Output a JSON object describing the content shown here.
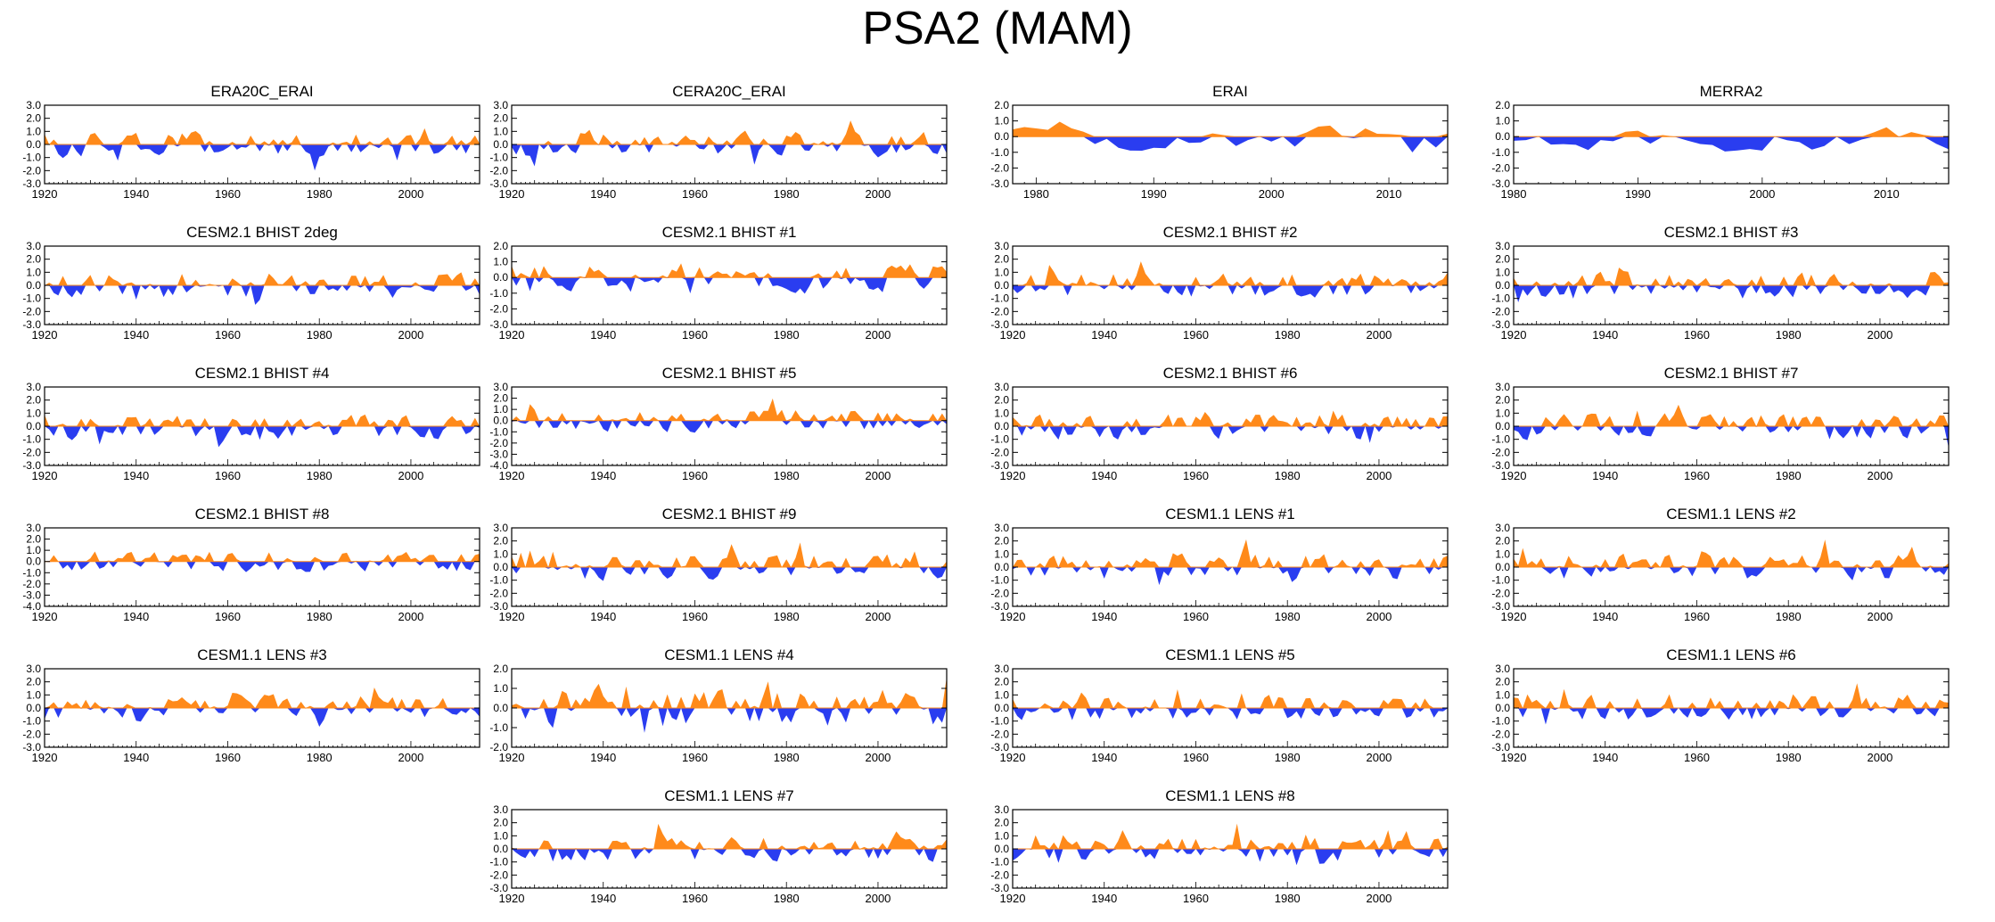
{
  "title": "PSA2 (MAM)",
  "colors": {
    "positive": "#ff8a1a",
    "negative": "#2a3df0",
    "axis": "#000000"
  },
  "chart_data": [
    {
      "name": "ERA20C_ERAI",
      "type": "area",
      "x_start": 1920,
      "x_end": 2015,
      "x_ticks": [
        1920,
        1940,
        1960,
        1980,
        2000
      ],
      "y_ticks": [
        3,
        2,
        1,
        0,
        -1,
        -2,
        -3
      ],
      "y_tick_labels": [
        "3.0",
        "2.0",
        "1.0",
        "0.0",
        "-1.0",
        "-2.0",
        "-3.0"
      ],
      "ylim": [
        -3,
        3
      ],
      "seed": 11
    },
    {
      "name": "CERA20C_ERAI",
      "type": "area",
      "x_start": 1920,
      "x_end": 2015,
      "x_ticks": [
        1920,
        1940,
        1960,
        1980,
        2000
      ],
      "y_ticks": [
        3,
        2,
        1,
        0,
        -1,
        -2,
        -3
      ],
      "y_tick_labels": [
        "3.0",
        "2.0",
        "1.0",
        "0.0",
        "-1.0",
        "-2.0",
        "-3.0"
      ],
      "ylim": [
        -3,
        3
      ],
      "seed": 12
    },
    {
      "name": "ERAI",
      "type": "area",
      "x_start": 1978,
      "x_end": 2015,
      "x_ticks": [
        1980,
        1990,
        2000,
        2010
      ],
      "y_ticks": [
        2,
        1,
        0,
        -1,
        -2,
        -3
      ],
      "y_tick_labels": [
        "2.0",
        "1.0",
        "0.0",
        "-1.0",
        "-2.0",
        "-3.0"
      ],
      "ylim": [
        -3,
        2
      ],
      "seed": 13,
      "smooth": true
    },
    {
      "name": "MERRA2",
      "type": "area",
      "x_start": 1980,
      "x_end": 2015,
      "x_ticks": [
        1980,
        1990,
        2000,
        2010
      ],
      "y_ticks": [
        2,
        1,
        0,
        -1,
        -2,
        -3
      ],
      "y_tick_labels": [
        "2.0",
        "1.0",
        "0.0",
        "-1.0",
        "-2.0",
        "-3.0"
      ],
      "ylim": [
        -3,
        2
      ],
      "seed": 14,
      "smooth": true
    },
    {
      "name": "CESM2.1 BHIST 2deg",
      "type": "area",
      "x_start": 1920,
      "x_end": 2015,
      "x_ticks": [
        1920,
        1940,
        1960,
        1980,
        2000
      ],
      "y_ticks": [
        3,
        2,
        1,
        0,
        -1,
        -2,
        -3
      ],
      "y_tick_labels": [
        "3.0",
        "2.0",
        "1.0",
        "0.0",
        "-1.0",
        "-2.0",
        "-3.0"
      ],
      "ylim": [
        -3,
        3
      ],
      "seed": 21
    },
    {
      "name": "CESM2.1 BHIST #1",
      "type": "area",
      "x_start": 1920,
      "x_end": 2015,
      "x_ticks": [
        1920,
        1940,
        1960,
        1980,
        2000
      ],
      "y_ticks": [
        2,
        1,
        0,
        -1,
        -2,
        -3
      ],
      "y_tick_labels": [
        "2.0",
        "1.0",
        "0.0",
        "-1.0",
        "-2.0",
        "-3.0"
      ],
      "ylim": [
        -3,
        2
      ],
      "seed": 22
    },
    {
      "name": "CESM2.1 BHIST #2",
      "type": "area",
      "x_start": 1920,
      "x_end": 2015,
      "x_ticks": [
        1920,
        1940,
        1960,
        1980,
        2000
      ],
      "y_ticks": [
        3,
        2,
        1,
        0,
        -1,
        -2,
        -3
      ],
      "y_tick_labels": [
        "3.0",
        "2.0",
        "1.0",
        "0.0",
        "-1.0",
        "-2.0",
        "-3.0"
      ],
      "ylim": [
        -3,
        3
      ],
      "seed": 23
    },
    {
      "name": "CESM2.1 BHIST #3",
      "type": "area",
      "x_start": 1920,
      "x_end": 2015,
      "x_ticks": [
        1920,
        1940,
        1960,
        1980,
        2000
      ],
      "y_ticks": [
        3,
        2,
        1,
        0,
        -1,
        -2,
        -3
      ],
      "y_tick_labels": [
        "3.0",
        "2.0",
        "1.0",
        "0.0",
        "-1.0",
        "-2.0",
        "-3.0"
      ],
      "ylim": [
        -3,
        3
      ],
      "seed": 24
    },
    {
      "name": "CESM2.1 BHIST #4",
      "type": "area",
      "x_start": 1920,
      "x_end": 2015,
      "x_ticks": [
        1920,
        1940,
        1960,
        1980,
        2000
      ],
      "y_ticks": [
        3,
        2,
        1,
        0,
        -1,
        -2,
        -3
      ],
      "y_tick_labels": [
        "3.0",
        "2.0",
        "1.0",
        "0.0",
        "-1.0",
        "-2.0",
        "-3.0"
      ],
      "ylim": [
        -3,
        3
      ],
      "seed": 31
    },
    {
      "name": "CESM2.1 BHIST #5",
      "type": "area",
      "x_start": 1920,
      "x_end": 2015,
      "x_ticks": [
        1920,
        1940,
        1960,
        1980,
        2000
      ],
      "y_ticks": [
        3,
        2,
        1,
        0,
        -1,
        -2,
        -3,
        -4
      ],
      "y_tick_labels": [
        "3.0",
        "2.0",
        "1.0",
        "0.0",
        "-1.0",
        "-2.0",
        "-3.0",
        "-4.0"
      ],
      "ylim": [
        -4,
        3
      ],
      "seed": 32
    },
    {
      "name": "CESM2.1 BHIST #6",
      "type": "area",
      "x_start": 1920,
      "x_end": 2015,
      "x_ticks": [
        1920,
        1940,
        1960,
        1980,
        2000
      ],
      "y_ticks": [
        3,
        2,
        1,
        0,
        -1,
        -2,
        -3
      ],
      "y_tick_labels": [
        "3.0",
        "2.0",
        "1.0",
        "0.0",
        "-1.0",
        "-2.0",
        "-3.0"
      ],
      "ylim": [
        -3,
        3
      ],
      "seed": 33
    },
    {
      "name": "CESM2.1 BHIST #7",
      "type": "area",
      "x_start": 1920,
      "x_end": 2015,
      "x_ticks": [
        1920,
        1940,
        1960,
        1980,
        2000
      ],
      "y_ticks": [
        3,
        2,
        1,
        0,
        -1,
        -2,
        -3
      ],
      "y_tick_labels": [
        "3.0",
        "2.0",
        "1.0",
        "0.0",
        "-1.0",
        "-2.0",
        "-3.0"
      ],
      "ylim": [
        -3,
        3
      ],
      "seed": 34
    },
    {
      "name": "CESM2.1 BHIST #8",
      "type": "area",
      "x_start": 1920,
      "x_end": 2015,
      "x_ticks": [
        1920,
        1940,
        1960,
        1980,
        2000
      ],
      "y_ticks": [
        3,
        2,
        1,
        0,
        -1,
        -2,
        -3,
        -4
      ],
      "y_tick_labels": [
        "3.0",
        "2.0",
        "1.0",
        "0.0",
        "-1.0",
        "-2.0",
        "-3.0",
        "-4.0"
      ],
      "ylim": [
        -4,
        3
      ],
      "seed": 41
    },
    {
      "name": "CESM2.1 BHIST #9",
      "type": "area",
      "x_start": 1920,
      "x_end": 2015,
      "x_ticks": [
        1920,
        1940,
        1960,
        1980,
        2000
      ],
      "y_ticks": [
        3,
        2,
        1,
        0,
        -1,
        -2,
        -3
      ],
      "y_tick_labels": [
        "3.0",
        "2.0",
        "1.0",
        "0.0",
        "-1.0",
        "-2.0",
        "-3.0"
      ],
      "ylim": [
        -3,
        3
      ],
      "seed": 42
    },
    {
      "name": "CESM1.1 LENS #1",
      "type": "area",
      "x_start": 1920,
      "x_end": 2015,
      "x_ticks": [
        1920,
        1940,
        1960,
        1980,
        2000
      ],
      "y_ticks": [
        3,
        2,
        1,
        0,
        -1,
        -2,
        -3
      ],
      "y_tick_labels": [
        "3.0",
        "2.0",
        "1.0",
        "0.0",
        "-1.0",
        "-2.0",
        "-3.0"
      ],
      "ylim": [
        -3,
        3
      ],
      "seed": 43
    },
    {
      "name": "CESM1.1 LENS #2",
      "type": "area",
      "x_start": 1920,
      "x_end": 2015,
      "x_ticks": [
        1920,
        1940,
        1960,
        1980,
        2000
      ],
      "y_ticks": [
        3,
        2,
        1,
        0,
        -1,
        -2,
        -3
      ],
      "y_tick_labels": [
        "3.0",
        "2.0",
        "1.0",
        "0.0",
        "-1.0",
        "-2.0",
        "-3.0"
      ],
      "ylim": [
        -3,
        3
      ],
      "seed": 44
    },
    {
      "name": "CESM1.1 LENS #3",
      "type": "area",
      "x_start": 1920,
      "x_end": 2015,
      "x_ticks": [
        1920,
        1940,
        1960,
        1980,
        2000
      ],
      "y_ticks": [
        3,
        2,
        1,
        0,
        -1,
        -2,
        -3
      ],
      "y_tick_labels": [
        "3.0",
        "2.0",
        "1.0",
        "0.0",
        "-1.0",
        "-2.0",
        "-3.0"
      ],
      "ylim": [
        -3,
        3
      ],
      "seed": 51
    },
    {
      "name": "CESM1.1 LENS #4",
      "type": "area",
      "x_start": 1920,
      "x_end": 2015,
      "x_ticks": [
        1920,
        1940,
        1960,
        1980,
        2000
      ],
      "y_ticks": [
        2,
        1,
        0,
        -1,
        -2
      ],
      "y_tick_labels": [
        "2.0",
        "1.0",
        "0.0",
        "-1.0",
        "-2.0"
      ],
      "ylim": [
        -2,
        2
      ],
      "seed": 52
    },
    {
      "name": "CESM1.1 LENS #5",
      "type": "area",
      "x_start": 1920,
      "x_end": 2015,
      "x_ticks": [
        1920,
        1940,
        1960,
        1980,
        2000
      ],
      "y_ticks": [
        3,
        2,
        1,
        0,
        -1,
        -2,
        -3
      ],
      "y_tick_labels": [
        "3.0",
        "2.0",
        "1.0",
        "0.0",
        "-1.0",
        "-2.0",
        "-3.0"
      ],
      "ylim": [
        -3,
        3
      ],
      "seed": 53
    },
    {
      "name": "CESM1.1 LENS #6",
      "type": "area",
      "x_start": 1920,
      "x_end": 2015,
      "x_ticks": [
        1920,
        1940,
        1960,
        1980,
        2000
      ],
      "y_ticks": [
        3,
        2,
        1,
        0,
        -1,
        -2,
        -3
      ],
      "y_tick_labels": [
        "3.0",
        "2.0",
        "1.0",
        "0.0",
        "-1.0",
        "-2.0",
        "-3.0"
      ],
      "ylim": [
        -3,
        3
      ],
      "seed": 54
    },
    {
      "name": "CESM1.1 LENS #7",
      "type": "area",
      "x_start": 1920,
      "x_end": 2015,
      "x_ticks": [
        1920,
        1940,
        1960,
        1980,
        2000
      ],
      "y_ticks": [
        3,
        2,
        1,
        0,
        -1,
        -2,
        -3
      ],
      "y_tick_labels": [
        "3.0",
        "2.0",
        "1.0",
        "0.0",
        "-1.0",
        "-2.0",
        "-3.0"
      ],
      "ylim": [
        -3,
        3
      ],
      "seed": 61
    },
    {
      "name": "CESM1.1 LENS #8",
      "type": "area",
      "x_start": 1920,
      "x_end": 2015,
      "x_ticks": [
        1920,
        1940,
        1960,
        1980,
        2000
      ],
      "y_ticks": [
        3,
        2,
        1,
        0,
        -1,
        -2,
        -3
      ],
      "y_tick_labels": [
        "3.0",
        "2.0",
        "1.0",
        "0.0",
        "-1.0",
        "-2.0",
        "-3.0"
      ],
      "ylim": [
        -3,
        3
      ],
      "seed": 62
    }
  ]
}
